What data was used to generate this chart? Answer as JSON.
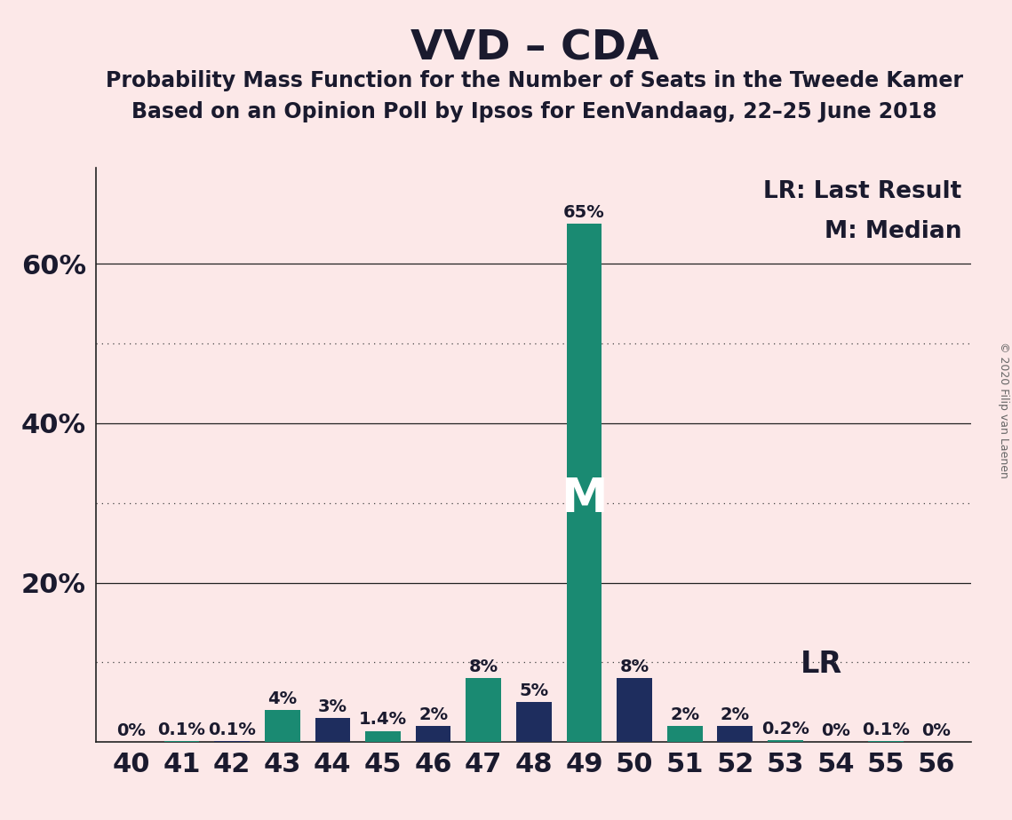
{
  "title": "VVD – CDA",
  "subtitle1": "Probability Mass Function for the Number of Seats in the Tweede Kamer",
  "subtitle2": "Based on an Opinion Poll by Ipsos for EenVandaag, 22–25 June 2018",
  "copyright": "© 2020 Filip van Laenen",
  "legend_lr": "LR: Last Result",
  "legend_m": "M: Median",
  "median_label": "M",
  "lr_label": "LR",
  "seats": [
    40,
    41,
    42,
    43,
    44,
    45,
    46,
    47,
    48,
    49,
    50,
    51,
    52,
    53,
    54,
    55,
    56
  ],
  "values": [
    0.0,
    0.1,
    0.1,
    4.0,
    3.0,
    1.4,
    2.0,
    8.0,
    5.0,
    65.0,
    8.0,
    2.0,
    2.0,
    0.2,
    0.0,
    0.1,
    0.0
  ],
  "labels": [
    "0%",
    "0.1%",
    "0.1%",
    "4%",
    "3%",
    "1.4%",
    "2%",
    "8%",
    "5%",
    "65%",
    "8%",
    "2%",
    "2%",
    "0.2%",
    "0%",
    "0.1%",
    "0%"
  ],
  "colors": [
    "#1a8a72",
    "#1a8a72",
    "#1e2d5e",
    "#1a8a72",
    "#1e2d5e",
    "#1a8a72",
    "#1e2d5e",
    "#1a8a72",
    "#1e2d5e",
    "#1a8a72",
    "#1e2d5e",
    "#1a8a72",
    "#1e2d5e",
    "#1a8a72",
    "#1e2d5e",
    "#1a8a72",
    "#1e2d5e"
  ],
  "median_seat": 49,
  "lr_seat": 52,
  "background_color": "#fce8e8",
  "ylim_max": 72,
  "solid_yticks": [
    20,
    40,
    60
  ],
  "dotted_yticks": [
    10,
    30,
    50
  ],
  "ytick_display": [
    20,
    40,
    60
  ],
  "ytick_labels": [
    "20%",
    "40%",
    "60%"
  ],
  "title_fontsize": 34,
  "subtitle_fontsize": 17,
  "xtick_fontsize": 22,
  "ytick_fontsize": 22,
  "bar_label_fontsize": 14,
  "legend_fontsize": 19,
  "m_label_fontsize": 38,
  "lr_label_fontsize": 24,
  "bar_width": 0.7
}
